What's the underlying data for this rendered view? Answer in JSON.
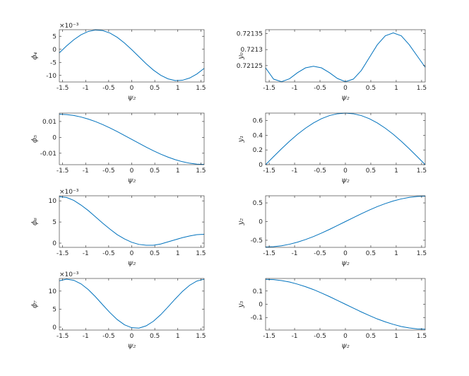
{
  "chart_data": [
    {
      "type": "line",
      "ylabel": "ϕ₄",
      "xlabel": "ψ₂",
      "exponent": "×10⁻³",
      "x": [
        -1.571,
        -1.414,
        -1.257,
        -1.1,
        -0.942,
        -0.785,
        -0.628,
        -0.471,
        -0.314,
        -0.157,
        0,
        0.157,
        0.314,
        0.471,
        0.628,
        0.785,
        0.942,
        1.1,
        1.257,
        1.414,
        1.571
      ],
      "series": [
        {
          "color": "#0072bd",
          "values": [
            -1.36,
            1.28,
            3.66,
            5.55,
            6.83,
            7.38,
            7.17,
            6.21,
            4.58,
            2.41,
            -0.14,
            -2.85,
            -5.53,
            -7.95,
            -9.92,
            -11.28,
            -11.95,
            -11.84,
            -10.98,
            -9.44,
            -7.3
          ]
        }
      ],
      "xlim": [
        -1.5708,
        1.5708
      ],
      "xticks": [
        -1.5,
        -1,
        -0.5,
        0,
        0.5,
        1,
        1.5
      ],
      "ylim": [
        -12.5,
        7.5
      ],
      "yticks": [
        -10,
        -5,
        0,
        5
      ]
    },
    {
      "type": "line",
      "ylabel": "y₀",
      "xlabel": "ψ₂",
      "x": [
        -1.571,
        -1.414,
        -1.257,
        -1.1,
        -0.942,
        -0.785,
        -0.628,
        -0.471,
        -0.314,
        -0.157,
        0,
        0.157,
        0.314,
        0.471,
        0.628,
        0.785,
        0.942,
        1.1,
        1.257,
        1.414,
        1.571
      ],
      "series": [
        {
          "color": "#0072bd",
          "values": [
            0.721243,
            0.721208,
            0.7212,
            0.721209,
            0.721228,
            0.721243,
            0.721248,
            0.721243,
            0.721228,
            0.72121,
            0.7212,
            0.721208,
            0.721235,
            0.721275,
            0.721315,
            0.721343,
            0.721352,
            0.721343,
            0.721315,
            0.72128,
            0.721245
          ]
        }
      ],
      "xlim": [
        -1.5708,
        1.5708
      ],
      "xticks": [
        -1.5,
        -1,
        -0.5,
        0,
        0.5,
        1,
        1.5
      ],
      "ylim": [
        0.721199,
        0.721362
      ],
      "yticks": [
        0.72125,
        0.7213,
        0.72135
      ]
    },
    {
      "type": "line",
      "ylabel": "ϕ₅",
      "xlabel": "ψ₂",
      "x": [
        -1.571,
        -1.414,
        -1.257,
        -1.1,
        -0.942,
        -0.785,
        -0.628,
        -0.471,
        -0.314,
        -0.157,
        0,
        0.157,
        0.314,
        0.471,
        0.628,
        0.785,
        0.942,
        1.1,
        1.257,
        1.414,
        1.571
      ],
      "series": [
        {
          "color": "#0072bd",
          "values": [
            0.01455,
            0.01436,
            0.01378,
            0.01283,
            0.01153,
            0.00992,
            0.00804,
            0.00592,
            0.00363,
            0.00122,
            -0.00125,
            -0.00372,
            -0.00613,
            -0.00842,
            -0.01054,
            -0.01242,
            -0.01403,
            -0.01533,
            -0.01628,
            -0.01686,
            -0.01705
          ]
        }
      ],
      "xlim": [
        -1.5708,
        1.5708
      ],
      "xticks": [
        -1.5,
        -1,
        -0.5,
        0,
        0.5,
        1,
        1.5
      ],
      "ylim": [
        -0.0172,
        0.0153
      ],
      "yticks": [
        -0.01,
        0,
        0.01
      ]
    },
    {
      "type": "line",
      "ylabel": "y₁",
      "xlabel": "ψ₂",
      "x": [
        -1.571,
        -1.414,
        -1.257,
        -1.1,
        -0.942,
        -0.785,
        -0.628,
        -0.471,
        -0.314,
        -0.157,
        0,
        0.157,
        0.314,
        0.471,
        0.628,
        0.785,
        0.942,
        1.1,
        1.257,
        1.414,
        1.571
      ],
      "series": [
        {
          "color": "#0072bd",
          "values": [
            0,
            0.109,
            0.216,
            0.318,
            0.412,
            0.495,
            0.566,
            0.624,
            0.666,
            0.691,
            0.7,
            0.691,
            0.666,
            0.624,
            0.566,
            0.495,
            0.412,
            0.318,
            0.216,
            0.109,
            0
          ]
        }
      ],
      "xlim": [
        -1.5708,
        1.5708
      ],
      "xticks": [
        -1.5,
        -1,
        -0.5,
        0,
        0.5,
        1,
        1.5
      ],
      "ylim": [
        0,
        0.7
      ],
      "yticks": [
        0,
        0.2,
        0.4,
        0.6
      ]
    },
    {
      "type": "line",
      "ylabel": "ϕ₆",
      "xlabel": "ψ₂",
      "exponent": "×10⁻³",
      "x": [
        -1.571,
        -1.414,
        -1.257,
        -1.1,
        -0.942,
        -0.785,
        -0.628,
        -0.471,
        -0.314,
        -0.157,
        0,
        0.157,
        0.314,
        0.471,
        0.628,
        0.785,
        0.942,
        1.1,
        1.257,
        1.414,
        1.571
      ],
      "series": [
        {
          "color": "#0072bd",
          "values": [
            11.0,
            10.8,
            10.1,
            9.0,
            7.7,
            6.2,
            4.7,
            3.3,
            2.0,
            1.0,
            0.2,
            -0.3,
            -0.5,
            -0.5,
            -0.2,
            0.3,
            0.8,
            1.3,
            1.7,
            2.0,
            2.1
          ]
        }
      ],
      "xlim": [
        -1.5708,
        1.5708
      ],
      "xticks": [
        -1.5,
        -1,
        -0.5,
        0,
        0.5,
        1,
        1.5
      ],
      "ylim": [
        -1,
        11.2
      ],
      "yticks": [
        0,
        5,
        10
      ]
    },
    {
      "type": "line",
      "ylabel": "y₂",
      "xlabel": "ψ₂",
      "x": [
        -1.571,
        -1.414,
        -1.257,
        -1.1,
        -0.942,
        -0.785,
        -0.628,
        -0.471,
        -0.314,
        -0.157,
        0,
        0.157,
        0.314,
        0.471,
        0.628,
        0.785,
        0.942,
        1.1,
        1.257,
        1.414,
        1.571
      ],
      "series": [
        {
          "color": "#0072bd",
          "values": [
            -0.68,
            -0.672,
            -0.647,
            -0.606,
            -0.55,
            -0.481,
            -0.4,
            -0.309,
            -0.21,
            -0.106,
            0,
            0.106,
            0.21,
            0.309,
            0.4,
            0.481,
            0.55,
            0.606,
            0.647,
            0.672,
            0.68
          ]
        }
      ],
      "xlim": [
        -1.5708,
        1.5708
      ],
      "xticks": [
        -1.5,
        -1,
        -0.5,
        0,
        0.5,
        1,
        1.5
      ],
      "ylim": [
        -0.69,
        0.69
      ],
      "yticks": [
        -0.5,
        0,
        0.5
      ]
    },
    {
      "type": "line",
      "ylabel": "ϕ₇",
      "xlabel": "ψ₂",
      "exponent": "×10⁻³",
      "x": [
        -1.571,
        -1.414,
        -1.257,
        -1.1,
        -0.942,
        -0.785,
        -0.628,
        -0.471,
        -0.314,
        -0.157,
        0,
        0.157,
        0.314,
        0.471,
        0.628,
        0.785,
        0.942,
        1.1,
        1.257,
        1.414,
        1.571
      ],
      "series": [
        {
          "color": "#0072bd",
          "values": [
            12.87,
            13.3,
            12.99,
            12.0,
            10.41,
            8.4,
            6.18,
            4.01,
            2.1,
            0.66,
            -0.15,
            -0.25,
            0.37,
            1.65,
            3.45,
            5.58,
            7.8,
            9.9,
            11.62,
            12.79,
            13.29
          ]
        }
      ],
      "xlim": [
        -1.5708,
        1.5708
      ],
      "xticks": [
        -1.5,
        -1,
        -0.5,
        0,
        0.5,
        1,
        1.5
      ],
      "ylim": [
        -0.8,
        13.5
      ],
      "yticks": [
        0,
        5,
        10
      ]
    },
    {
      "type": "line",
      "ylabel": "y₃",
      "xlabel": "ψ₂",
      "x": [
        -1.571,
        -1.414,
        -1.257,
        -1.1,
        -0.942,
        -0.785,
        -0.628,
        -0.471,
        -0.314,
        -0.157,
        0,
        0.157,
        0.314,
        0.471,
        0.628,
        0.785,
        0.942,
        1.1,
        1.257,
        1.414,
        1.571
      ],
      "series": [
        {
          "color": "#0072bd",
          "values": [
            0.188,
            0.186,
            0.179,
            0.168,
            0.152,
            0.133,
            0.111,
            0.085,
            0.058,
            0.029,
            0,
            -0.029,
            -0.058,
            -0.085,
            -0.111,
            -0.133,
            -0.152,
            -0.168,
            -0.179,
            -0.186,
            -0.188
          ]
        }
      ],
      "xlim": [
        -1.5708,
        1.5708
      ],
      "xticks": [
        -1.5,
        -1,
        -0.5,
        0,
        0.5,
        1,
        1.5
      ],
      "ylim": [
        -0.195,
        0.195
      ],
      "yticks": [
        -0.1,
        0,
        0.1
      ]
    }
  ]
}
